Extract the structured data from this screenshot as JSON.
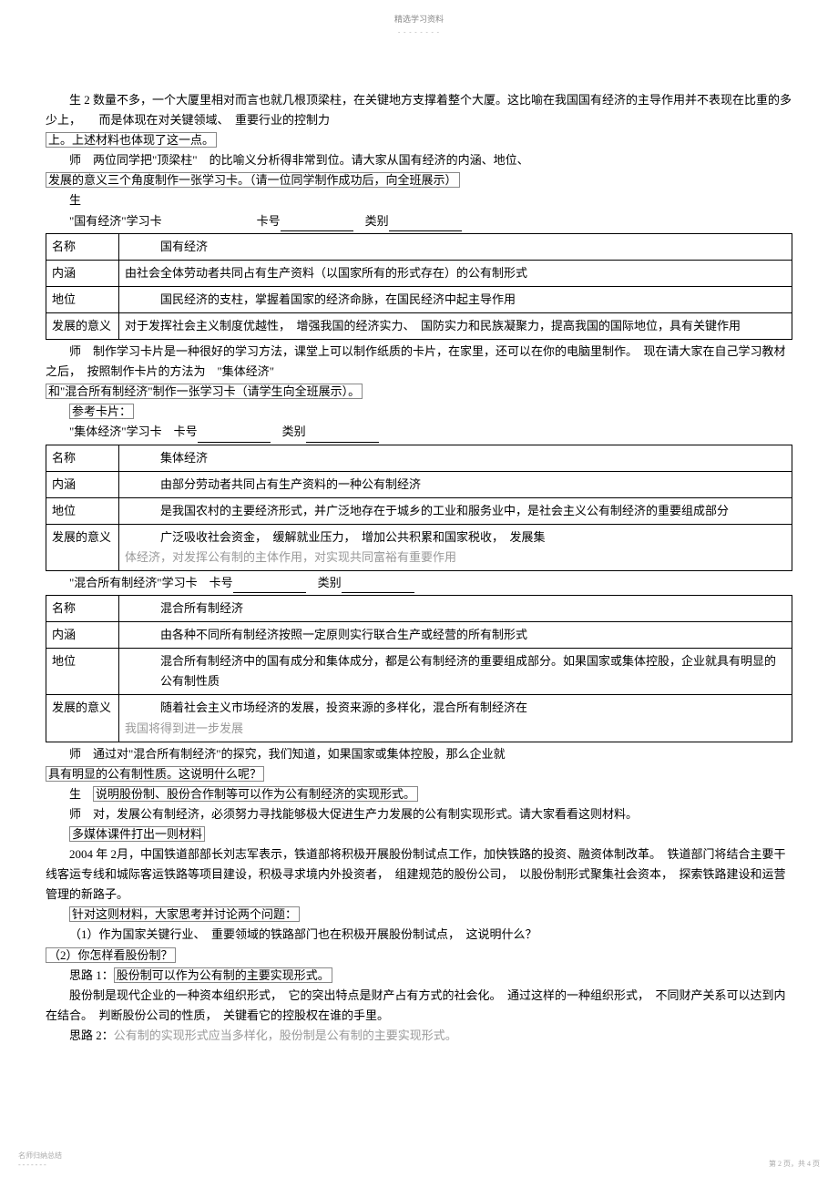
{
  "header": {
    "title": "精选学习资料",
    "sub": "- - - - - - - -"
  },
  "intro": {
    "p1": "生 2 数量不多，一个大厦里相对而言也就几根顶梁柱，在关键地方支撑着整个大厦。这比喻在我国国有经济的主导作用并不表现在比重的多少上，　　而是体现在对关键领域、　重要行业的控制力",
    "p1_boxed": "上。上述材料也体现了这一点。",
    "p2": "师　两位同学把\"顶梁柱\"　的比喻义分析得非常到位。请大家从国有经济的内涵、地位、",
    "p2b_boxed": "发展的意义三个角度制作一张学习卡。（请一位同学制作成功后，向全班展示）",
    "p3": "生",
    "card1_title": "\"国有经济\"学习卡　　　　　　　　卡号",
    "card_label": "类别"
  },
  "table1": {
    "r1c1": "名称",
    "r1c2": "国有经济",
    "r2c1": "内涵",
    "r2c2": "由社会全体劳动者共同占有生产资料（以国家所有的形式存在）的公有制形式",
    "r3c1": "地位",
    "r3c2": "国民经济的支柱，掌握着国家的经济命脉，在国民经济中起主导作用",
    "r4c1": "发展的意义",
    "r4c2": "对于发挥社会主义制度优越性，　增强我国的经济实力、　国防实力和民族凝聚力，提高我国的国际地位，具有关键作用"
  },
  "mid1": {
    "p1": "师　制作学习卡片是一种很好的学习方法，课堂上可以制作纸质的卡片，在家里，还可以在你的电脑里制作。　现在请大家在自己学习教材之后，　按照制作卡片的方法为　\"集体经济\"",
    "p1b_boxed": "和\"混合所有制经济\"制作一张学习卡（请学生向全班展示）。",
    "p2_boxed": "参考卡片：",
    "card2_title": "\"集体经济\"学习卡　卡号",
    "card_label": "类别"
  },
  "table2": {
    "r1c1": "名称",
    "r1c2": "集体经济",
    "r2c1": "内涵",
    "r2c2": "由部分劳动者共同占有生产资料的一种公有制经济",
    "r3c1": "地位",
    "r3c2": "是我国农村的主要经济形式，并广泛地存在于城乡的工业和服务业中，是社会主义公有制经济的重要组成部分",
    "r4c1": "发展的意义",
    "r4c2a": "广泛吸收社会资金，　缓解就业压力，　增加公共积累和国家税收，　发展集",
    "r4c2b_gray": "体经济，对发挥公有制的主体作用，对实现共同富裕有重要作用"
  },
  "mid2": {
    "card3_title": "\"混合所有制经济\"学习卡　卡号",
    "card_label": "类别"
  },
  "table3": {
    "r1c1": "名称",
    "r1c2": "混合所有制经济",
    "r2c1": "内涵",
    "r2c2": "由各种不同所有制经济按照一定原则实行联合生产或经营的所有制形式",
    "r3c1": "地位",
    "r3c2": "混合所有制经济中的国有成分和集体成分，都是公有制经济的重要组成部分。如果国家或集体控股，企业就具有明显的公有制性质",
    "r4c1": "发展的意义",
    "r4c2a": "随着社会主义市场经济的发展，投资来源的多样化，混合所有制经济在",
    "r4c2b_gray": "我国将得到进一步发展"
  },
  "after": {
    "p1": "师　通过对\"混合所有制经济\"的探究，我们知道，如果国家或集体控股，那么企业就",
    "p1b_boxed": "具有明显的公有制性质。这说明什么呢？",
    "p2_pre": "生",
    "p2_boxed": "说明股份制、股份合作制等可以作为公有制经济的实现形式。",
    "p3": "师　对，发展公有制经济，必须努力寻找能够极大促进生产力发展的公有制实现形式。请大家看看这则材料。",
    "p4_boxed": "多媒体课件打出一则材料",
    "p5": "2004 年 2月，中国铁道部部长刘志军表示，铁道部将积极开展股份制试点工作，加快铁路的投资、融资体制改革。　铁道部门将结合主要干线客运专线和城际客运铁路等项目建设，积极寻求境内外投资者，　组建规范的股份公司，　以股份制形式聚集社会资本，　探索铁路建设和运营管理的新路子。",
    "p6_boxed": "针对这则材料，大家思考并讨论两个问题：",
    "p7": "（1）作为国家关键行业、　重要领域的铁路部门也在积极开展股份制试点，　这说明什么？",
    "p8_boxed": "（2）你怎样看股份制？",
    "p9_pre": "思路 1：",
    "p9_boxed": "股份制可以作为公有制的主要实现形式。",
    "p10": "股份制是现代企业的一种资本组织形式，　它的突出特点是财产占有方式的社会化。　通过这样的一种组织形式，　不同财产关系可以达到内在结合。　判断股份公司的性质，　关键看它的控股权在谁的手里。",
    "p11_pre": "思路 2：",
    "p11_gray": "公有制的实现形式应当多样化，股份制是公有制的主要实现形式。"
  },
  "footer": {
    "left1": "名师归纳总结",
    "left2": "- - - - - - -",
    "right": "第 2 页，共 4 页"
  },
  "style": {
    "font_size": 13,
    "line_height": 1.7,
    "text_color": "#000000",
    "box_border_color": "#888888",
    "table_border_color": "#000000",
    "gray_text_color": "#999999",
    "header_color": "#888888",
    "footer_color": "#aaaaaa",
    "background": "#ffffff"
  }
}
